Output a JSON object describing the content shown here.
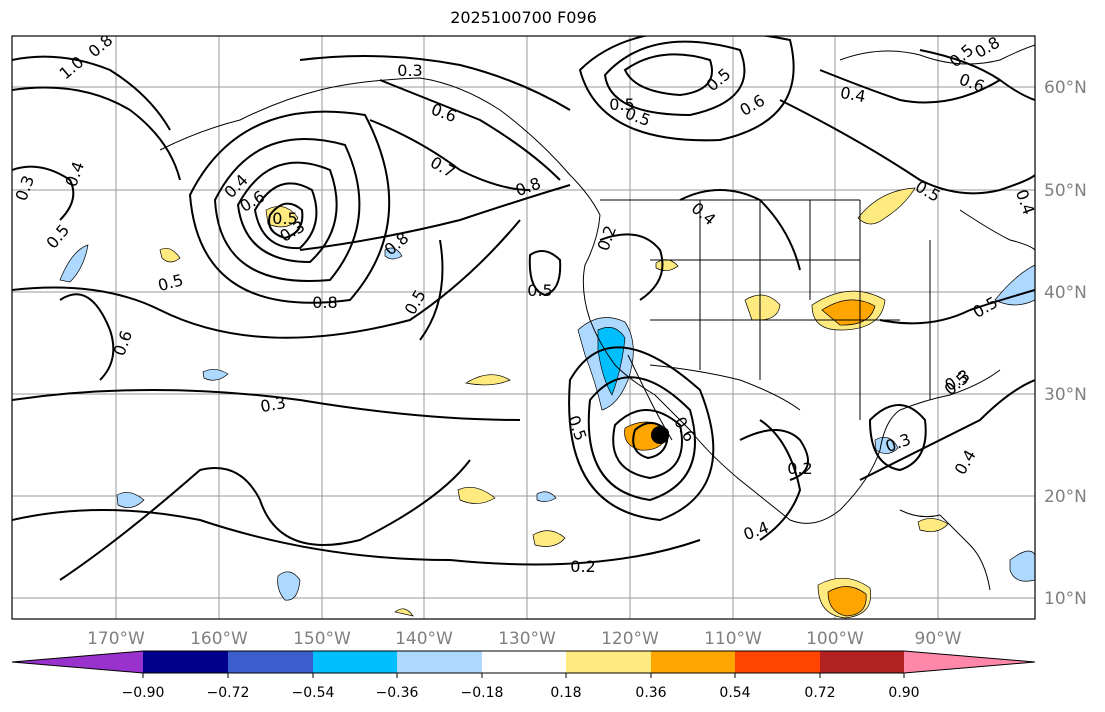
{
  "title": "2025100700 F096",
  "map": {
    "lon_ticks": [
      "170°W",
      "160°W",
      "150°W",
      "140°W",
      "130°W",
      "120°W",
      "110°W",
      "100°W",
      "90°W"
    ],
    "lat_ticks": [
      "60°N",
      "50°N",
      "40°N",
      "30°N",
      "20°N",
      "10°N"
    ],
    "tick_color": "#808080",
    "contour_labels": [
      "1.0",
      "0.8",
      "0.3",
      "0.6",
      "0.5",
      "0.4",
      "0.7",
      "0.8",
      "0.2",
      "0.4",
      "0.6",
      "0.5",
      "0.3",
      "0.6",
      "0.5",
      "0.8",
      "0.5",
      "0.8",
      "0.5",
      "0.5",
      "0.6",
      "0.3",
      "0.5",
      "0.6",
      "0.2",
      "0.4",
      "0.2",
      "0.3",
      "0.5",
      "0.3",
      "0.4",
      "0.5",
      "0.4",
      "0.3",
      "0.5",
      "0.6",
      "0.8",
      "0.4",
      "0.5",
      "0.5",
      "0.5",
      "0.4"
    ],
    "shading_colors": {
      "neg_018": "#add8ff",
      "neg_036": "#00bfff",
      "pos_018": "#ffea80",
      "pos_036": "#ffa500"
    }
  },
  "colorbar": {
    "colors": [
      "#9932cc",
      "#00008b",
      "#3a5fcd",
      "#00bfff",
      "#add8ff",
      "#ffffff",
      "#ffea80",
      "#ffa500",
      "#ff4500",
      "#b22222",
      "#ff88aa"
    ],
    "tick_labels": [
      "−0.90",
      "−0.72",
      "−0.54",
      "−0.36",
      "−0.18",
      "0.18",
      "0.36",
      "0.54",
      "0.72",
      "0.90"
    ]
  }
}
